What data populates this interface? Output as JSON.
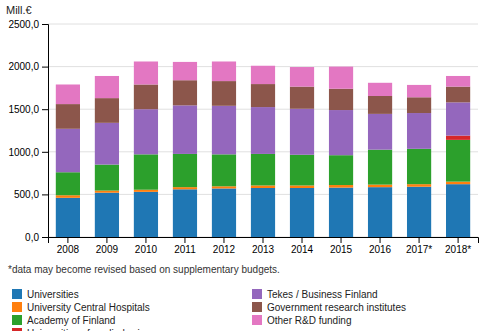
{
  "chart_data": {
    "type": "bar",
    "stacked": true,
    "grid": true,
    "ylabel": "Mill.€",
    "annotations": [
      "*data may become revised based on supplementary budgets."
    ],
    "categories": [
      "2008",
      "2009",
      "2010",
      "2011",
      "2012",
      "2013",
      "2014",
      "2015",
      "2016",
      "2017*",
      "2018*"
    ],
    "series": [
      {
        "name": "Universities",
        "values": [
          460,
          520,
          530,
          560,
          570,
          575,
          575,
          580,
          585,
          590,
          620
        ]
      },
      {
        "name": "University Central Hospitals",
        "values": [
          30,
          25,
          25,
          25,
          25,
          30,
          30,
          30,
          30,
          30,
          30
        ]
      },
      {
        "name": "Academy of Finland",
        "values": [
          270,
          305,
          415,
          390,
          375,
          370,
          360,
          350,
          410,
          415,
          490
        ]
      },
      {
        "name": "Universities of applied sciences",
        "values": [
          0,
          0,
          0,
          0,
          0,
          0,
          0,
          0,
          0,
          0,
          50
        ]
      },
      {
        "name": "Tekes / Business Finland",
        "values": [
          510,
          490,
          530,
          570,
          570,
          550,
          540,
          530,
          420,
          420,
          390
        ]
      },
      {
        "name": "Government research institutes",
        "values": [
          290,
          290,
          290,
          295,
          290,
          270,
          260,
          250,
          210,
          185,
          185
        ]
      },
      {
        "name": "Other R&D funding",
        "values": [
          230,
          260,
          270,
          215,
          230,
          215,
          230,
          260,
          155,
          145,
          125
        ]
      }
    ],
    "ylim": [
      0,
      2500
    ],
    "yticks": [
      {
        "value": 0,
        "label": "0,0"
      },
      {
        "value": 500,
        "label": "500,0"
      },
      {
        "value": 1000,
        "label": "1000,0"
      },
      {
        "value": 1500,
        "label": "1500,0"
      },
      {
        "value": 2000,
        "label": "2000,0"
      },
      {
        "value": 2500,
        "label": "2500,0"
      }
    ]
  }
}
